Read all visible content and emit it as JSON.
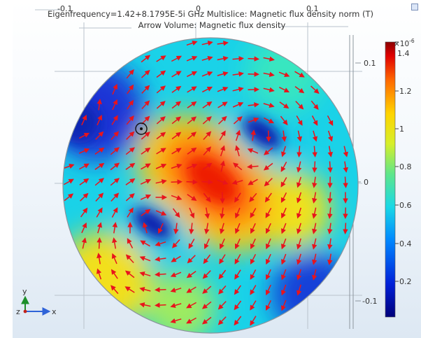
{
  "plot": {
    "title_line1": "Eigenfrequency=1.42+8.1795E-5i GHz   Multislice: Magnetic flux density norm (T)",
    "title_line2": "Arrow Volume: Magnetic flux density",
    "top_ticks": [
      "-0.1",
      "0",
      "0.1"
    ],
    "right_ticks": [
      "0.1",
      "0",
      "-0.1"
    ],
    "axis_x": "x",
    "axis_y": "y",
    "axis_z": "z",
    "arrow_color": "#e8141c"
  },
  "colorbar": {
    "exponent_base": "×10",
    "exponent_power": "-6",
    "labels": [
      "1.4",
      "1.2",
      "1",
      "0.8",
      "0.6",
      "0.4",
      "0.2"
    ],
    "min": 0,
    "max": 1.4,
    "colormap": "rainbow"
  }
}
